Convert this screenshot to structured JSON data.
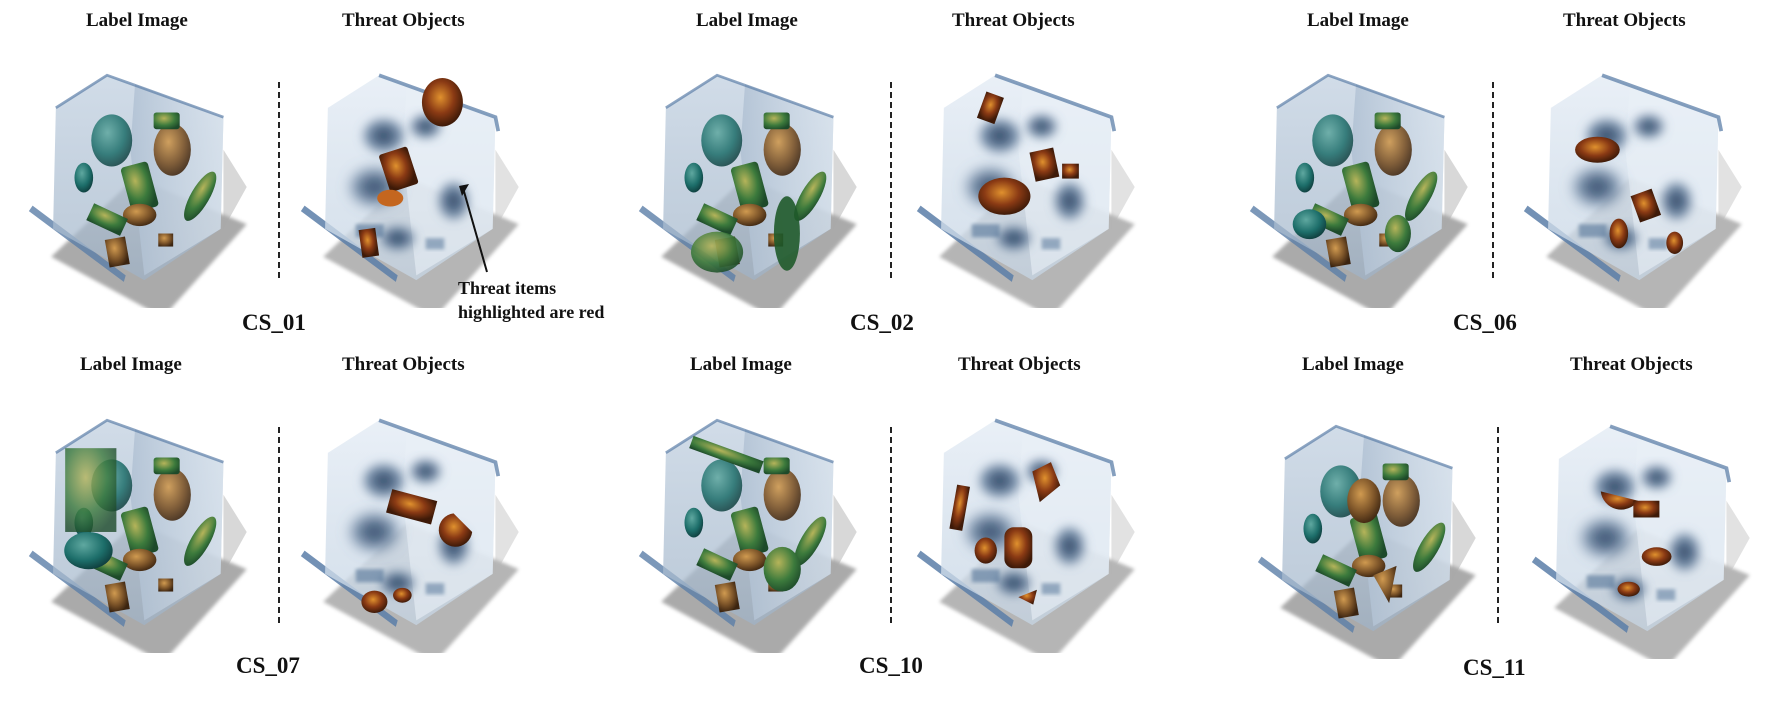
{
  "headers": {
    "label": "Label Image",
    "threat": "Threat Objects"
  },
  "cases": [
    {
      "id": "CS_01"
    },
    {
      "id": "CS_02"
    },
    {
      "id": "CS_06"
    },
    {
      "id": "CS_07"
    },
    {
      "id": "CS_10"
    },
    {
      "id": "CS_11"
    }
  ],
  "annotation": {
    "line1": "Threat items",
    "line2": "highlighted are red"
  },
  "colors": {
    "box_fill": "#b9c8d8",
    "box_edge": "#5c7fa8",
    "base_shadow": "#8e8e8e",
    "label_green": "#2f6f3a",
    "label_teal": "#1d6e6a",
    "label_olive": "#7a7a2a",
    "label_brown": "#6b4322",
    "threat_red": "#8a3a14",
    "threat_orange": "#c4661f",
    "dark_blue": "#1e3554"
  }
}
